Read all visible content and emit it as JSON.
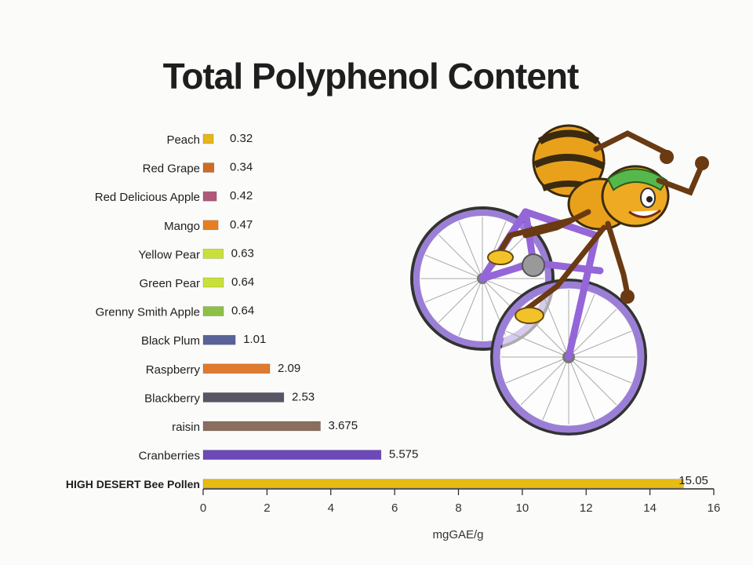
{
  "chart_data": {
    "type": "bar",
    "orientation": "horizontal",
    "title": "Total Polyphenol Content",
    "xlabel": "mgGAE/g",
    "ylabel": "",
    "xlim": [
      0,
      16
    ],
    "xticks": [
      0,
      2,
      4,
      6,
      8,
      10,
      12,
      14,
      16
    ],
    "grid": false,
    "categories": [
      "Peach",
      "Red Grape",
      "Red Delicious Apple",
      "Mango",
      "Yellow Pear",
      "Green Pear",
      "Grenny Smith Apple",
      "Black Plum",
      "Raspberry",
      "Blackberry",
      "raisin",
      "Cranberries",
      "HIGH DESERT Bee Pollen"
    ],
    "values": [
      0.32,
      0.34,
      0.42,
      0.47,
      0.63,
      0.64,
      0.64,
      1.01,
      2.09,
      2.53,
      3.675,
      5.575,
      15.05
    ],
    "value_labels": [
      "0.32",
      "0.34",
      "0.42",
      "0.47",
      "0.63",
      "0.64",
      "0.64",
      "1.01",
      "2.09",
      "2.53",
      "3.675",
      "5.575",
      "15.05"
    ],
    "colors": [
      "#e7b51c",
      "#cf6b29",
      "#b0587a",
      "#e57f22",
      "#c9e03a",
      "#c9e03a",
      "#8dc048",
      "#5a6399",
      "#e07a2e",
      "#5a5565",
      "#8a6e5e",
      "#6d49b8",
      "#e6bb14"
    ],
    "highlight_index": 12
  }
}
